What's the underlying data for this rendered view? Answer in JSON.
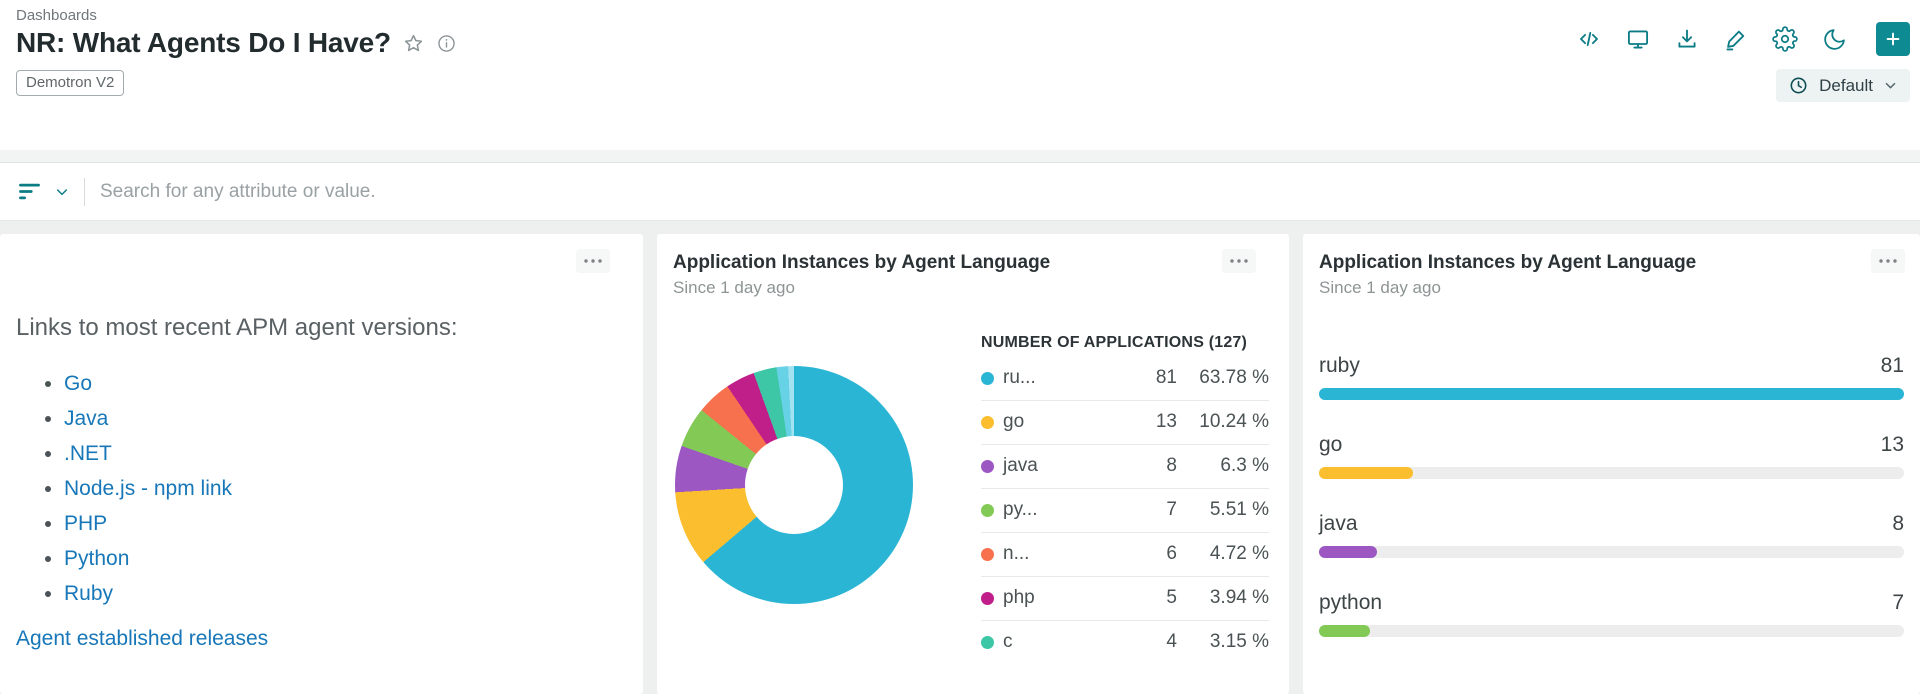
{
  "header": {
    "breadcrumb": "Dashboards",
    "title": "NR: What Agents Do I Have?",
    "badge": "Demotron V2",
    "time_picker_label": "Default",
    "action_icons": [
      "code-icon",
      "tv-icon",
      "download-icon",
      "pencil-icon",
      "gear-icon",
      "moon-icon",
      "plus-icon"
    ],
    "title_icons": [
      "star-icon",
      "info-icon"
    ],
    "accent_color": "#0b7c85",
    "add_button_color": "#0e8a93"
  },
  "filter_bar": {
    "placeholder": "Search for any attribute or value.",
    "icons": [
      "filter-icon",
      "chevron-down-icon"
    ]
  },
  "links_panel": {
    "heading": "Links to most recent APM agent versions:",
    "items": [
      "Go",
      "Java",
      ".NET",
      "Node.js - npm link",
      "PHP",
      "Python",
      "Ruby"
    ],
    "footer_link": "Agent established releases",
    "link_color": "#1777b8"
  },
  "chart_data": [
    {
      "type": "pie",
      "title": "Application Instances by Agent Language",
      "subtitle": "Since 1 day ago",
      "legend_header": "NUMBER OF APPLICATIONS (127)",
      "total": 127,
      "legend_position": "right",
      "donut_hole_ratio": 0.41,
      "rows": [
        {
          "label": "ru...",
          "value": 81,
          "pct": 63.78,
          "pct_label": "63.78 %",
          "color": "#2bb5d5"
        },
        {
          "label": "go",
          "value": 13,
          "pct": 10.24,
          "pct_label": "10.24 %",
          "color": "#fbbe2e"
        },
        {
          "label": "java",
          "value": 8,
          "pct": 6.3,
          "pct_label": "6.3 %",
          "color": "#9d57c2"
        },
        {
          "label": "py...",
          "value": 7,
          "pct": 5.51,
          "pct_label": "5.51 %",
          "color": "#83c956"
        },
        {
          "label": "n...",
          "value": 6,
          "pct": 4.72,
          "pct_label": "4.72 %",
          "color": "#f7714e"
        },
        {
          "label": "php",
          "value": 5,
          "pct": 3.94,
          "pct_label": "3.94 %",
          "color": "#c01f8a"
        },
        {
          "label": "c",
          "value": 4,
          "pct": 3.15,
          "pct_label": "3.15 %",
          "color": "#3ec7a6"
        }
      ],
      "extra_slices": [
        {
          "pct": 1.57,
          "color": "#67d1e5"
        },
        {
          "pct": 0.79,
          "color": "#a3e3f1"
        }
      ]
    },
    {
      "type": "bar",
      "orientation": "horizontal",
      "title": "Application Instances by Agent Language",
      "subtitle": "Since 1 day ago",
      "categories": [
        "ruby",
        "go",
        "java",
        "python"
      ],
      "values": [
        81,
        13,
        8,
        7
      ],
      "colors": [
        "#2bb5d5",
        "#fbbe2e",
        "#9d57c2",
        "#83c956"
      ],
      "max": 81,
      "track_color": "#ededed"
    }
  ]
}
